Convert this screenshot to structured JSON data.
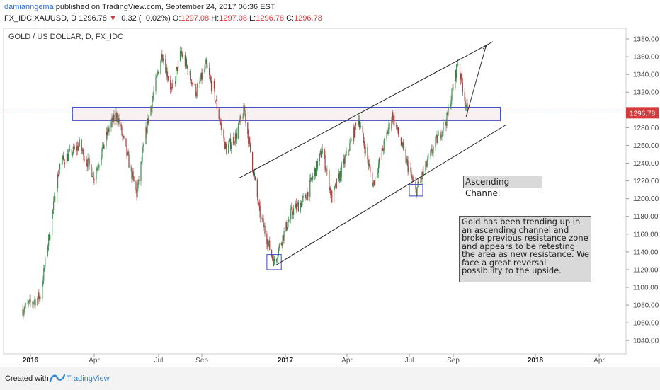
{
  "header": {
    "author": "damianngema",
    "published_text": "published on TradingView.com, September 24, 2017 06:36 EST",
    "symbol": "FX_IDC:XAUUSD, D",
    "last_price": "1296.78",
    "change_arrow": "▼",
    "change": "−0.32 (−0.02%)",
    "ohlc": [
      {
        "label": "O:",
        "value": "1297.08"
      },
      {
        "label": "H:",
        "value": "1297.08"
      },
      {
        "label": "L:",
        "value": "1296.78"
      },
      {
        "label": "C:",
        "value": "1296.78"
      }
    ]
  },
  "footer": {
    "created_with": "Created with",
    "brand": "TradingView"
  },
  "annotations": {
    "channel_label": "Ascending Channel",
    "commentary": "Gold has been trending up in an ascending channel and broke previous resistance zone and appears to be retesting the area as new resistance. We face a great reversal possibility to the upside."
  },
  "colors": {
    "up": "#3d8a4f",
    "down": "#a53c3c",
    "price_label_bg": "#d43b3b",
    "resistance_box": "#3949c5",
    "channel_line": "#222222"
  },
  "chart_data": {
    "type": "candlestick",
    "title": "GOLD / US DOLLAR, D, FX_IDC",
    "x_tick_labels": [
      "2016",
      "Apr",
      "Jul",
      "Sep",
      "2017",
      "Apr",
      "Jul",
      "Sep",
      "2018",
      "Apr"
    ],
    "y_tick_labels": [
      1040,
      1060,
      1080,
      1100,
      1120,
      1140,
      1160,
      1180,
      1200,
      1220,
      1240,
      1260,
      1280,
      1300,
      1320,
      1340,
      1360,
      1380
    ],
    "ylim": [
      1025,
      1392
    ],
    "last_price": 1296.78,
    "price_path": [
      {
        "date": "2015-12-20",
        "close": 1075
      },
      {
        "date": "2016-01-15",
        "close": 1090
      },
      {
        "date": "2016-02-12",
        "close": 1240
      },
      {
        "date": "2016-03-11",
        "close": 1260
      },
      {
        "date": "2016-04-01",
        "close": 1225
      },
      {
        "date": "2016-04-22",
        "close": 1280
      },
      {
        "date": "2016-05-03",
        "close": 1295
      },
      {
        "date": "2016-05-31",
        "close": 1205
      },
      {
        "date": "2016-06-15",
        "close": 1285
      },
      {
        "date": "2016-07-06",
        "close": 1365
      },
      {
        "date": "2016-07-20",
        "close": 1320
      },
      {
        "date": "2016-08-02",
        "close": 1365
      },
      {
        "date": "2016-08-24",
        "close": 1320
      },
      {
        "date": "2016-09-07",
        "close": 1350
      },
      {
        "date": "2016-09-20",
        "close": 1315
      },
      {
        "date": "2016-10-06",
        "close": 1255
      },
      {
        "date": "2016-10-20",
        "close": 1270
      },
      {
        "date": "2016-11-02",
        "close": 1300
      },
      {
        "date": "2016-11-24",
        "close": 1185
      },
      {
        "date": "2016-12-15",
        "close": 1128
      },
      {
        "date": "2017-01-10",
        "close": 1185
      },
      {
        "date": "2017-01-30",
        "close": 1200
      },
      {
        "date": "2017-02-24",
        "close": 1255
      },
      {
        "date": "2017-03-10",
        "close": 1200
      },
      {
        "date": "2017-04-18",
        "close": 1290
      },
      {
        "date": "2017-05-09",
        "close": 1215
      },
      {
        "date": "2017-06-06",
        "close": 1295
      },
      {
        "date": "2017-07-10",
        "close": 1208
      },
      {
        "date": "2017-08-08",
        "close": 1265
      },
      {
        "date": "2017-08-23",
        "close": 1290
      },
      {
        "date": "2017-09-08",
        "close": 1355
      },
      {
        "date": "2017-09-22",
        "close": 1296.78
      }
    ],
    "resistance_zone": {
      "from": "2016-03-01",
      "to": "2017-11-10",
      "low": 1288,
      "high": 1303
    },
    "channel_upper": [
      {
        "date": "2016-10-25",
        "price": 1223
      },
      {
        "date": "2017-10-30",
        "price": 1377
      }
    ],
    "channel_lower": [
      {
        "date": "2016-12-18",
        "price": 1125
      },
      {
        "date": "2017-11-18",
        "price": 1283
      }
    ],
    "projection_arrow": [
      {
        "date": "2017-09-20",
        "price": 1292
      },
      {
        "date": "2017-10-20",
        "price": 1373
      }
    ],
    "highlight_boxes": [
      {
        "from": "2016-12-05",
        "to": "2016-12-26",
        "low": 1120,
        "high": 1137
      },
      {
        "from": "2017-07-01",
        "to": "2017-07-20",
        "low": 1203,
        "high": 1216
      }
    ]
  }
}
